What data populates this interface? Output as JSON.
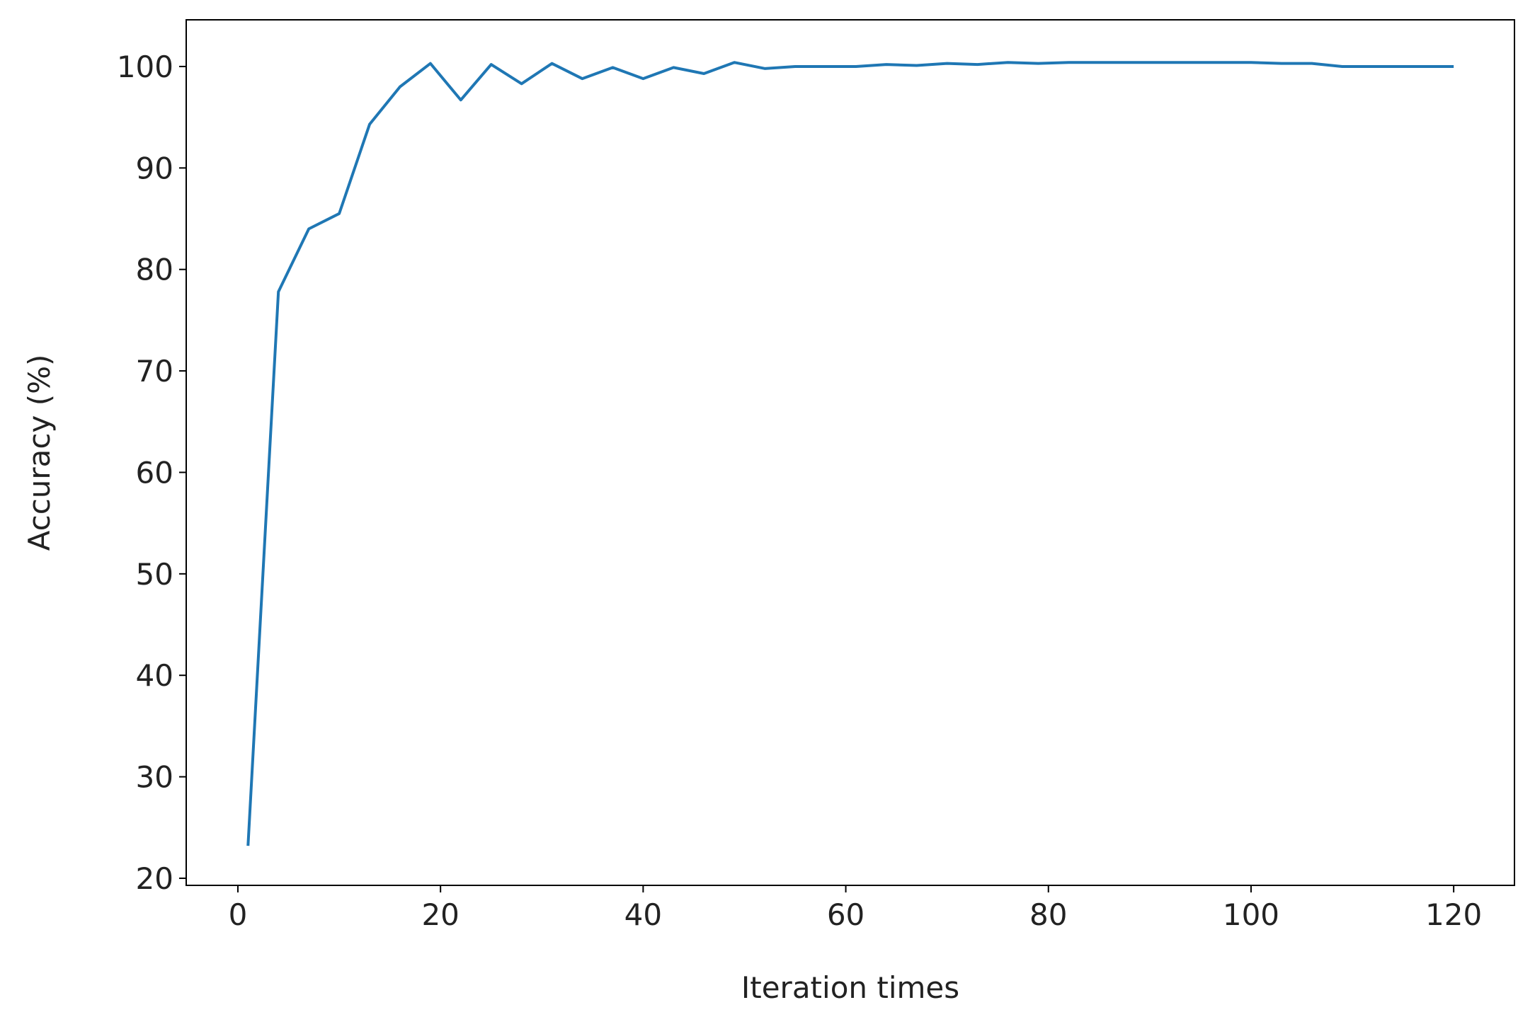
{
  "chart_data": {
    "type": "line",
    "xlabel": "Iteration times",
    "ylabel": "Accuracy (%)",
    "x": [
      1,
      4,
      7,
      10,
      13,
      16,
      19,
      22,
      25,
      28,
      31,
      34,
      37,
      40,
      43,
      46,
      49,
      52,
      55,
      58,
      61,
      64,
      67,
      70,
      73,
      76,
      79,
      82,
      85,
      88,
      91,
      94,
      97,
      100,
      103,
      106,
      109,
      112,
      115,
      118,
      120
    ],
    "series": [
      {
        "color": "#1f77b4",
        "values": [
          23.2,
          77.8,
          84,
          85.5,
          94.3,
          98,
          100.3,
          96.7,
          100.2,
          98.3,
          100.3,
          98.8,
          99.9,
          98.8,
          99.9,
          99.3,
          100.4,
          99.8,
          100,
          100,
          100,
          100.2,
          100.1,
          100.3,
          100.2,
          100.4,
          100.3,
          100.4,
          100.4,
          100.4,
          100.4,
          100.4,
          100.4,
          100.4,
          100.3,
          100.3,
          100,
          100,
          100,
          100,
          100
        ]
      }
    ],
    "xlim": [
      -5.1,
      126
    ],
    "ylim": [
      19.3,
      104.6
    ],
    "xticks": [
      0,
      20,
      40,
      60,
      80,
      100,
      120
    ],
    "yticks": [
      20,
      30,
      40,
      50,
      60,
      70,
      80,
      90,
      100
    ]
  }
}
